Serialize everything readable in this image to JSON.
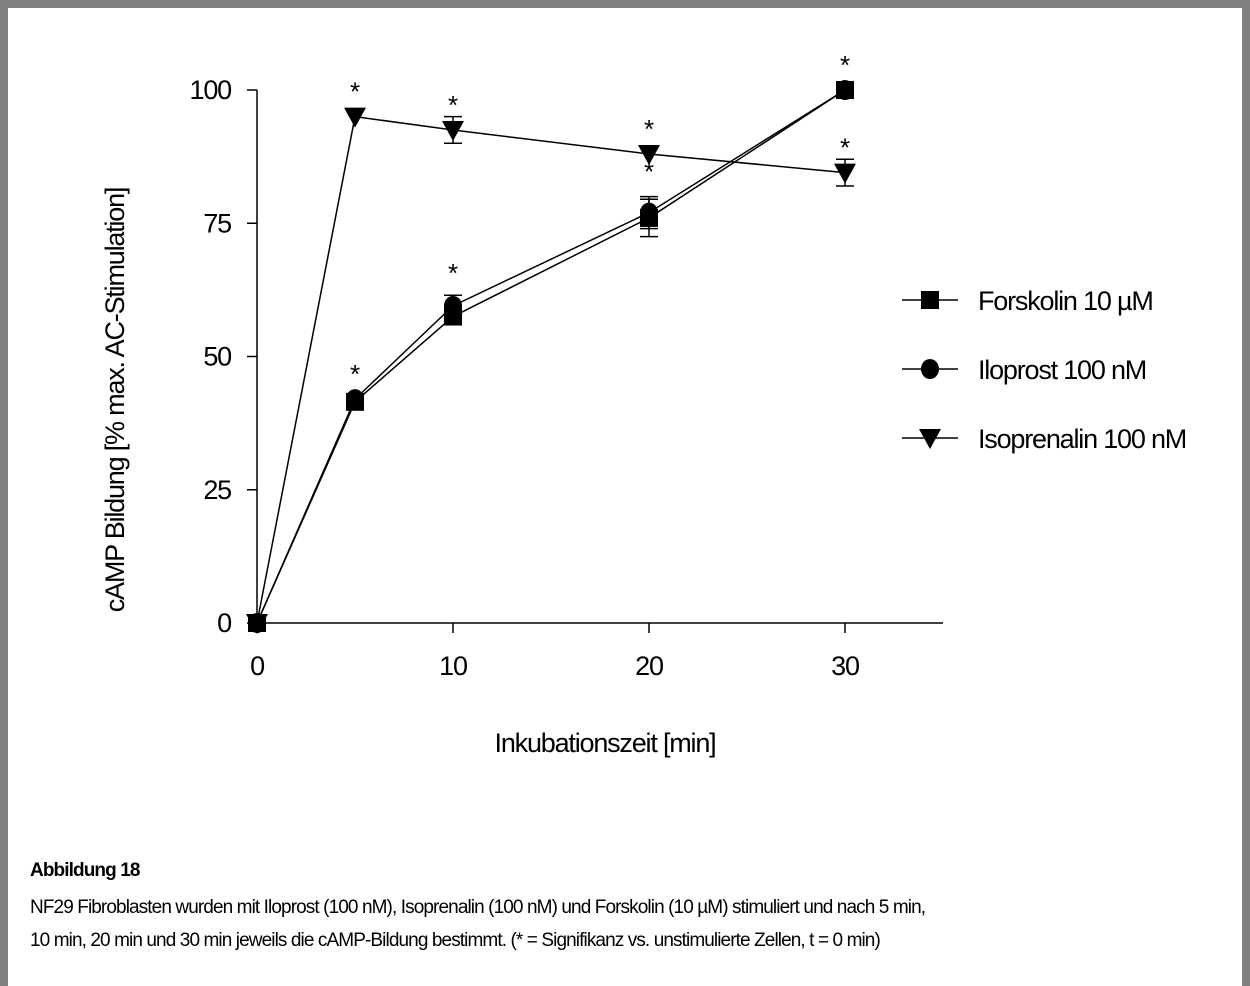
{
  "chart_data": {
    "type": "line",
    "xlabel": "Inkubationszeit [min]",
    "ylabel": "cAMP Bildung [% max. AC-Stimulation]",
    "xlim": [
      0,
      35
    ],
    "ylim": [
      0,
      100
    ],
    "x_ticks": [
      "0",
      "10",
      "20",
      "30"
    ],
    "y_ticks": [
      "0",
      "25",
      "50",
      "75",
      "100"
    ],
    "grid": false,
    "legend_position": "right",
    "significance_marker": "*",
    "series": [
      {
        "name": "Forskolin 10 µM",
        "marker": "square",
        "x": [
          0,
          5,
          10,
          20,
          30
        ],
        "y": [
          0,
          41.5,
          57.5,
          76,
          100
        ],
        "err": [
          0,
          0,
          0,
          3.5,
          0
        ]
      },
      {
        "name": "Iloprost 100 nM",
        "marker": "circle",
        "x": [
          0,
          5,
          10,
          20,
          30
        ],
        "y": [
          0,
          42,
          59.5,
          77,
          100
        ],
        "err": [
          0,
          0,
          2,
          3,
          0
        ]
      },
      {
        "name": "Isoprenalin 100 nM",
        "marker": "triangle-down",
        "x": [
          0,
          5,
          10,
          20,
          30
        ],
        "y": [
          0,
          95,
          92.5,
          88,
          84.5
        ],
        "err": [
          0,
          0,
          2.5,
          0,
          2.5
        ]
      }
    ],
    "significance": [
      {
        "x": 5,
        "y": 95
      },
      {
        "x": 5,
        "y": 42
      },
      {
        "x": 10,
        "y": 92.5
      },
      {
        "x": 10,
        "y": 61
      },
      {
        "x": 20,
        "y": 88
      },
      {
        "x": 20,
        "y": 80
      },
      {
        "x": 30,
        "y": 100
      },
      {
        "x": 30,
        "y": 84.5
      }
    ]
  },
  "caption": {
    "title": "Abbildung 18",
    "line1": "NF29 Fibroblasten wurden mit Iloprost (100 nM), Isoprenalin (100 nM) und Forskolin (10 µM) stimuliert und nach 5 min,",
    "line2": "10 min, 20 min und 30 min jeweils die cAMP-Bildung bestimmt. (* = Signifikanz vs. unstimulierte Zellen, t = 0 min)"
  }
}
